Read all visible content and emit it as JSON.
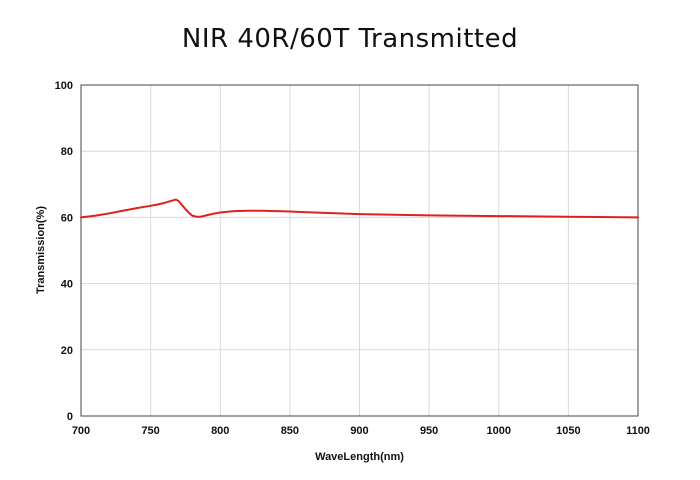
{
  "chart_data": {
    "type": "line",
    "title": "NIR 40R/60T Transmitted",
    "xlabel": "WaveLength(nm)",
    "ylabel": "Transmission(%)",
    "xlim": [
      700,
      1100
    ],
    "ylim": [
      0,
      100
    ],
    "xticks": [
      700,
      750,
      800,
      850,
      900,
      950,
      1000,
      1050,
      1100
    ],
    "yticks": [
      0,
      20,
      40,
      60,
      80,
      100
    ],
    "grid": true,
    "line_color": "#e0201a",
    "series": [
      {
        "x": [
          700,
          710,
          720,
          730,
          740,
          750,
          755,
          760,
          765,
          768,
          770,
          772,
          775,
          778,
          780,
          783,
          786,
          790,
          795,
          800,
          810,
          820,
          830,
          840,
          850,
          860,
          880,
          900,
          950,
          1000,
          1050,
          1100
        ],
        "y": [
          60.0,
          60.5,
          61.2,
          62.0,
          62.8,
          63.5,
          63.9,
          64.4,
          65.0,
          65.4,
          65.0,
          64.0,
          62.5,
          61.2,
          60.5,
          60.2,
          60.2,
          60.6,
          61.1,
          61.5,
          61.9,
          62.0,
          62.0,
          61.9,
          61.8,
          61.6,
          61.3,
          61.0,
          60.6,
          60.4,
          60.2,
          60.0
        ]
      }
    ]
  }
}
